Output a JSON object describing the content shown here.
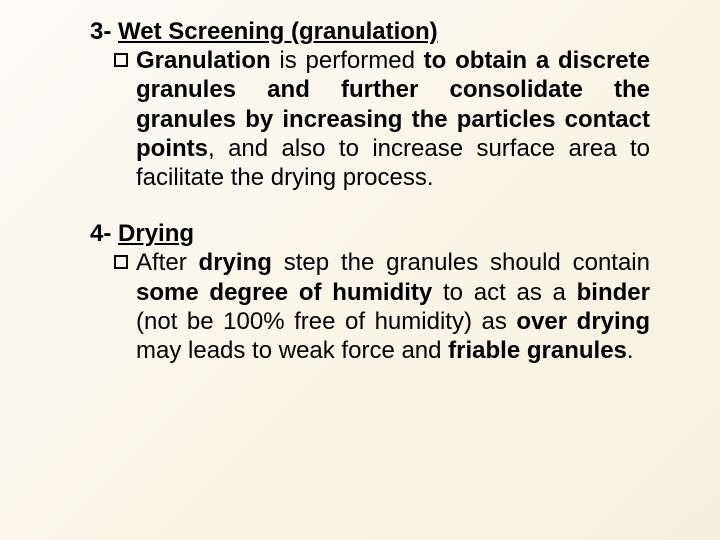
{
  "section1": {
    "num": "3-",
    "title": "Wet Screening (granulation)",
    "lead": "Granulation",
    "t1": " is performed ",
    "b1": "to obtain a discrete granules and further consolidate the granules by increasing the particles contact points",
    "t2": ", and also to increase surface area to facilitate the drying process."
  },
  "section2": {
    "num": "4-",
    "title": "Drying",
    "t1": "After ",
    "b1": "drying",
    "t2": " step the granules should contain ",
    "b2": "some degree of humidity",
    "t3": " to act as a ",
    "b3": "binder",
    "t4": " (not be 100% free of humidity) as ",
    "b4": "over drying",
    "t5": "  may leads to weak force and ",
    "b5": "friable granules",
    "t6": "."
  },
  "style": {
    "background_gradient": [
      "#fdfcf5",
      "#f5f0dc"
    ],
    "text_color": "#000000",
    "font_family": "Arial",
    "heading_fontsize": 24,
    "body_fontsize": 24,
    "bullet_box_size": 14,
    "bullet_border": "#000000"
  }
}
